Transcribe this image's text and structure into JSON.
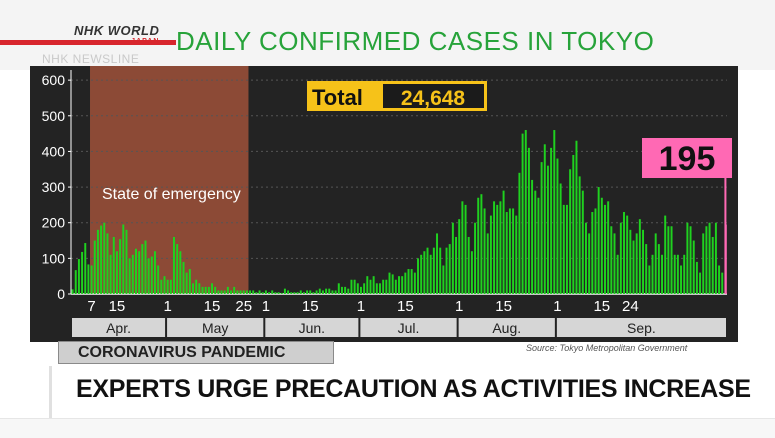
{
  "branding": {
    "logo_line1": "NHK WORLD",
    "logo_line2": "JAPAN",
    "watermark": "NHK NEWSLINE"
  },
  "topic_label": "CORONAVIRUS PANDEMIC",
  "headline": "EXPERTS URGE PRECAUTION AS ACTIVITIES INCREASE",
  "colors": {
    "title_green": "#27a33a",
    "bar_green": "#1fd11f",
    "highlight_pink": "#ff69b4",
    "emergency_shade": "#a3533a",
    "total_badge": "#f6c219",
    "brand_red": "#d8262d"
  },
  "chart_data": {
    "type": "bar",
    "title": "DAILY CONFIRMED CASES IN TOKYO",
    "source": "Source: Tokyo Metropolitan Government",
    "ylim": [
      0,
      620
    ],
    "y_ticks": [
      "0",
      "100",
      "200",
      "300",
      "400",
      "500",
      "600"
    ],
    "x_ticks": [
      "7",
      "15",
      "1",
      "15",
      "25",
      "1",
      "15",
      "1",
      "15",
      "1",
      "15",
      "1",
      "15",
      "24"
    ],
    "months": [
      "Apr.",
      "May",
      "Jun.",
      "Jul.",
      "Aug.",
      "Sep."
    ],
    "total": {
      "label": "Total",
      "value": "24,648"
    },
    "shaded_region": {
      "label": "State of emergency",
      "from": "Apr. 7",
      "to": "May 25"
    },
    "highlight": {
      "date": "Sep. 24",
      "value": 195,
      "label": "195"
    },
    "series": [
      {
        "start_date": "Apr. 1",
        "values": [
          13,
          67,
          98,
          118,
          143,
          83,
          80,
          150,
          180,
          192,
          200,
          170,
          110,
          160,
          120,
          154,
          195,
          180,
          100,
          110,
          127,
          120,
          140,
          150,
          100,
          105,
          120,
          80,
          40,
          50,
          40,
          40,
          160,
          140,
          120,
          90,
          60,
          70,
          30,
          40,
          30,
          20,
          20,
          20,
          30,
          20,
          10,
          10,
          10,
          20,
          10,
          20,
          10,
          10,
          10,
          10,
          10,
          10,
          5,
          10,
          5,
          10,
          5,
          10,
          5,
          5,
          3,
          15,
          10,
          5,
          5,
          5,
          10,
          5,
          10,
          10,
          5,
          10,
          15,
          10,
          15,
          15,
          10,
          10,
          30,
          20,
          20,
          15,
          40,
          40,
          30,
          20,
          30,
          50,
          40,
          50,
          30,
          30,
          40,
          40,
          60,
          55,
          40,
          50,
          50,
          60,
          70,
          70,
          60,
          100,
          110,
          120,
          130,
          110,
          130,
          170,
          130,
          80,
          130,
          140,
          200,
          160,
          210,
          260,
          250,
          160,
          120,
          200,
          270,
          280,
          240,
          170,
          220,
          260,
          250,
          260,
          290,
          230,
          240,
          240,
          220,
          340,
          450,
          460,
          410,
          320,
          290,
          270,
          370,
          420,
          360,
          410,
          460,
          380,
          310,
          250,
          250,
          350,
          390,
          430,
          330,
          290,
          200,
          170,
          230,
          240,
          300,
          270,
          250,
          260,
          190,
          170,
          110,
          200,
          230,
          220,
          180,
          150,
          170,
          210,
          180,
          140,
          80,
          110,
          170,
          140,
          110,
          220,
          190,
          190,
          110,
          110,
          80,
          110,
          200,
          190,
          150,
          90,
          60,
          170,
          190,
          200,
          160,
          200,
          80,
          60,
          195
        ]
      }
    ]
  }
}
